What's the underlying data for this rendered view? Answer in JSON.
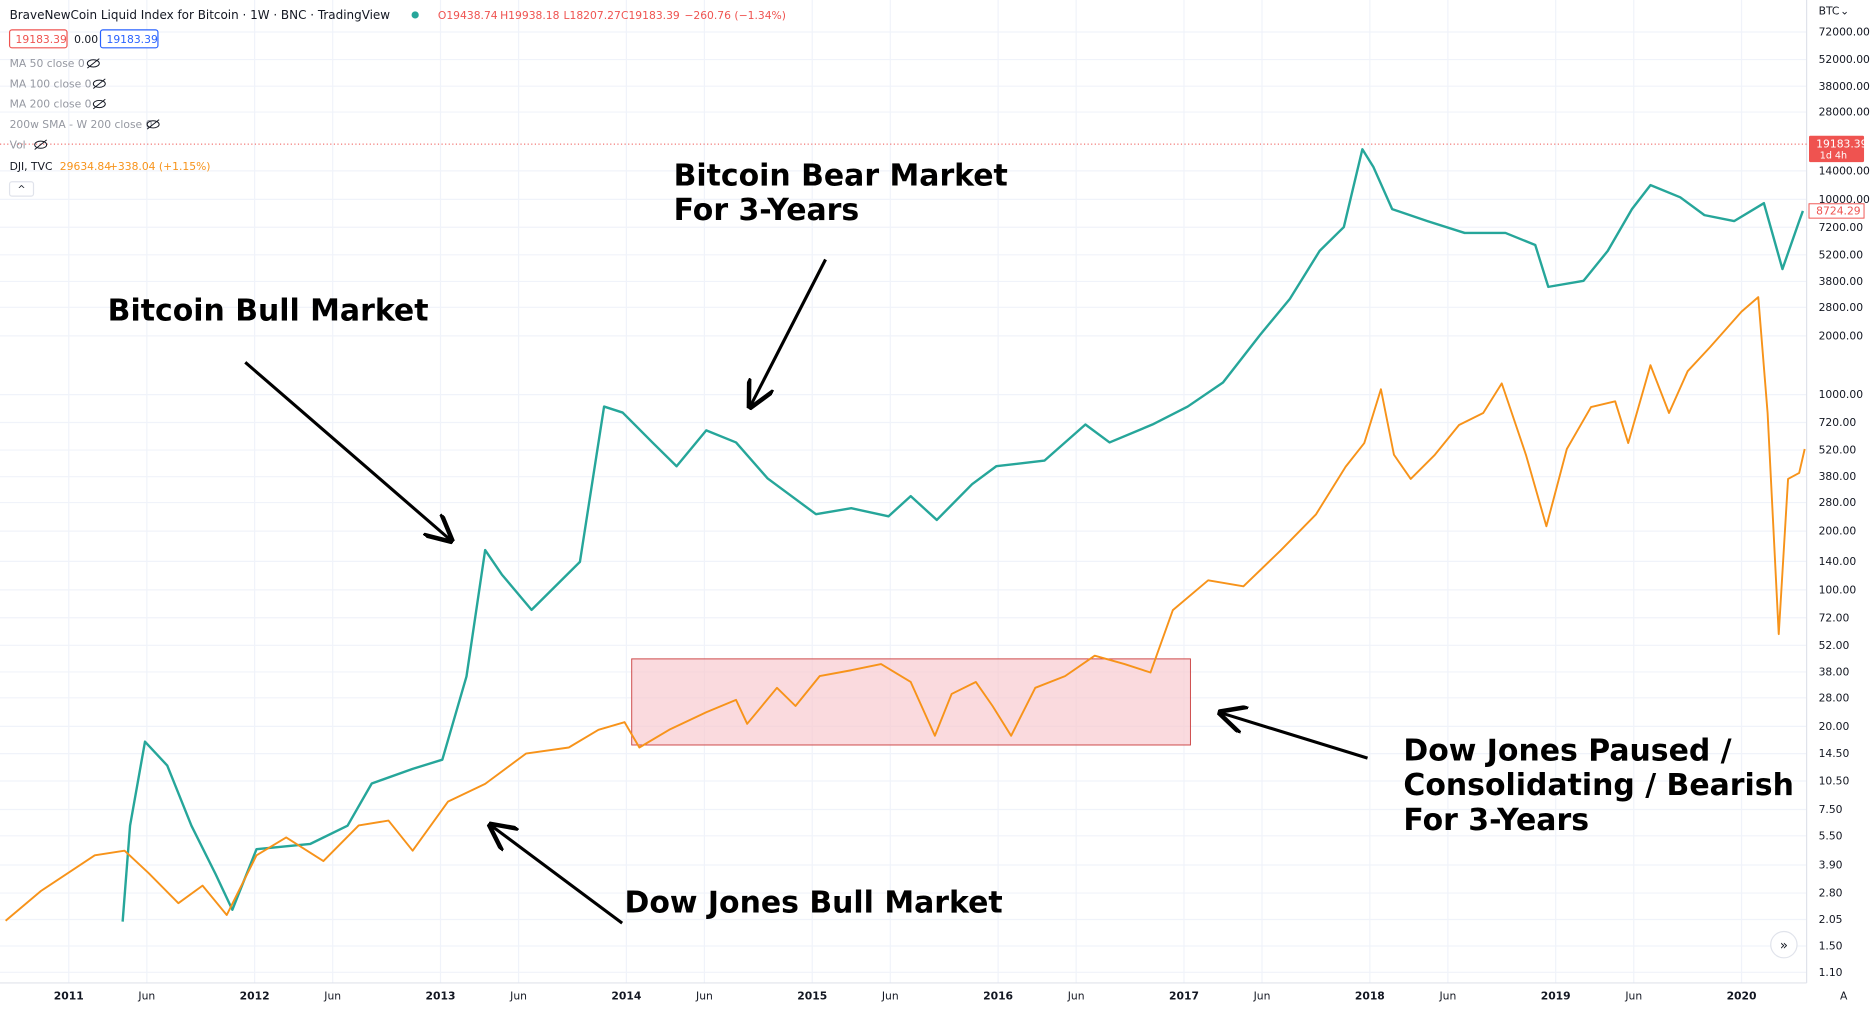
{
  "chart_data": {
    "type": "line",
    "header": {
      "title": "BraveNewCoin Liquid Index for Bitcoin · 1W · BNC · TradingView",
      "ohlc": [
        "O19438.74",
        "H19938.18",
        "L18207.27",
        "C19183.39",
        "−260.76 (−1.34%)"
      ],
      "boxes": [
        "19183.39",
        "0.00",
        "19183.39"
      ],
      "indicators": [
        "MA 50 close 0",
        "MA 100 close 0",
        "MA 200 close 0",
        "200w SMA - W 200 close 0",
        "Vol"
      ],
      "compare": [
        "DJI, TVC",
        "29634.84",
        "+338.04 (+1.15%)"
      ]
    },
    "currency": "BTC",
    "countdown": "1d 4h",
    "last_price": 19183.39,
    "annotations": [
      [
        "Bitcoin Bull Market"
      ],
      [
        "Bitcoin Bear Market",
        "For 3-Years"
      ],
      [
        "Dow Jones Bull Market"
      ],
      [
        "Dow Jones Paused /",
        "Consolidating / Bearish",
        "For 3-Years"
      ]
    ],
    "log_scale": true,
    "grid": true,
    "xlim": [
      2010.63,
      2020.35
    ],
    "xticks": [
      2011,
      {
        "value": 2011.42,
        "label": "Jun"
      },
      2012,
      {
        "value": 2012.42,
        "label": "Jun"
      },
      2013,
      {
        "value": 2013.42,
        "label": "Jun"
      },
      2014,
      {
        "value": 2014.42,
        "label": "Jun"
      },
      2015,
      {
        "value": 2015.42,
        "label": "Jun"
      },
      2016,
      {
        "value": 2016.42,
        "label": "Jun"
      },
      2017,
      {
        "value": 2017.42,
        "label": "Jun"
      },
      2018,
      {
        "value": 2018.42,
        "label": "Jun"
      },
      2019,
      {
        "value": 2019.42,
        "label": "Jun"
      },
      2020
    ],
    "ylim": [
      0.97,
      105000
    ],
    "yticks": [
      {
        "value": 1.1,
        "label": "1.10"
      },
      {
        "value": 1.5,
        "label": "1.50"
      },
      {
        "value": 2.05,
        "label": "2.05"
      },
      {
        "value": 2.8,
        "label": "2.80"
      },
      {
        "value": 3.9,
        "label": "3.90"
      },
      {
        "value": 5.5,
        "label": "5.50"
      },
      {
        "value": 7.5,
        "label": "7.50"
      },
      {
        "value": 10.5,
        "label": "10.50"
      },
      {
        "value": 14.5,
        "label": "14.50"
      },
      {
        "value": 20,
        "label": "20.00"
      },
      {
        "value": 28,
        "label": "28.00"
      },
      {
        "value": 38,
        "label": "38.00"
      },
      {
        "value": 52,
        "label": "52.00"
      },
      {
        "value": 72,
        "label": "72.00"
      },
      {
        "value": 100,
        "label": "100.00"
      },
      {
        "value": 140,
        "label": "140.00"
      },
      {
        "value": 200,
        "label": "200.00"
      },
      {
        "value": 280,
        "label": "280.00"
      },
      {
        "value": 380,
        "label": "380.00"
      },
      {
        "value": 520,
        "label": "520.00"
      },
      {
        "value": 720,
        "label": "720.00"
      },
      {
        "value": 1000,
        "label": "1000.00"
      },
      {
        "value": 2000,
        "label": "2000.00"
      },
      {
        "value": 2800,
        "label": "2800.00"
      },
      {
        "value": 3800,
        "label": "3800.00"
      },
      {
        "value": 5200,
        "label": "5200.00"
      },
      {
        "value": 7200,
        "label": "7200.00"
      },
      {
        "value": 10000,
        "label": "10000.00"
      },
      {
        "value": 14000,
        "label": "14000.00"
      },
      {
        "value": 28000,
        "label": "28000.00"
      },
      {
        "value": 38000,
        "label": "38000.00"
      },
      {
        "value": 52000,
        "label": "52000.00"
      },
      {
        "value": 72000,
        "label": "72000.00"
      }
    ],
    "y2lim": [
      9970,
      47200
    ],
    "series": [
      {
        "name": "BraveNewCoin Liquid Index for Bitcoin",
        "color": "#26a69a",
        "x": [
          2011.29,
          2011.33,
          2011.41,
          2011.53,
          2011.66,
          2011.79,
          2011.88,
          2012.01,
          2012.3,
          2012.5,
          2012.63,
          2012.85,
          2013.01,
          2013.14,
          2013.24,
          2013.33,
          2013.49,
          2013.75,
          2013.88,
          2013.98,
          2014.14,
          2014.27,
          2014.43,
          2014.59,
          2014.76,
          2015.02,
          2015.21,
          2015.41,
          2015.53,
          2015.67,
          2015.86,
          2015.99,
          2016.25,
          2016.47,
          2016.6,
          2016.83,
          2017.02,
          2017.21,
          2017.41,
          2017.57,
          2017.73,
          2017.86,
          2017.96,
          2018.02,
          2018.12,
          2018.31,
          2018.51,
          2018.73,
          2018.89,
          2018.96,
          2019.15,
          2019.28,
          2019.41,
          2019.51,
          2019.67,
          2019.8,
          2019.96,
          2020.12,
          2020.22,
          2020.31,
          2020.33
        ],
        "values": [
          2.0,
          6.2,
          16.7,
          12.6,
          6.2,
          3.5,
          2.3,
          4.7,
          5.0,
          6.2,
          10.2,
          12.1,
          13.5,
          36,
          160,
          120,
          79,
          139,
          869,
          810,
          569,
          430,
          656,
          569,
          372,
          244,
          262,
          238,
          302,
          228,
          348,
          430,
          460,
          703,
          569,
          703,
          869,
          1153,
          2028,
          3097,
          5445,
          7211,
          18070,
          14620,
          8915,
          7740,
          6730,
          6730,
          5834,
          3565,
          3828,
          5445,
          8915,
          11830,
          10250,
          8310,
          7740,
          9570,
          4400,
          7740,
          8724.29
        ]
      },
      {
        "name": "DJI, TVC",
        "color": "#f7931a",
        "axis": "y2",
        "x": [
          2010.66,
          2010.85,
          2011.14,
          2011.3,
          2011.43,
          2011.59,
          2011.72,
          2011.85,
          2012.01,
          2012.17,
          2012.37,
          2012.56,
          2012.72,
          2012.85,
          2013.04,
          2013.24,
          2013.46,
          2013.69,
          2013.85,
          2013.99,
          2014.07,
          2014.23,
          2014.43,
          2014.59,
          2014.65,
          2014.81,
          2014.91,
          2015.04,
          2015.21,
          2015.37,
          2015.53,
          2015.66,
          2015.75,
          2015.88,
          2015.97,
          2016.07,
          2016.2,
          2016.36,
          2016.52,
          2016.68,
          2016.82,
          2016.94,
          2017.13,
          2017.32,
          2017.52,
          2017.71,
          2017.87,
          2017.97,
          2018.06,
          2018.13,
          2018.22,
          2018.35,
          2018.48,
          2018.61,
          2018.71,
          2018.84,
          2018.95,
          2019.06,
          2019.19,
          2019.32,
          2019.39,
          2019.51,
          2019.61,
          2019.71,
          2019.83,
          2020.0,
          2020.09,
          2020.14,
          2020.2,
          2020.25,
          2020.31,
          2020.34
        ],
        "values": [
          11000,
          11530,
          12200,
          12290,
          11860,
          11310,
          11630,
          11100,
          12200,
          12550,
          12090,
          12790,
          12890,
          12290,
          13280,
          13660,
          14330,
          14470,
          14880,
          15060,
          14470,
          14880,
          15300,
          15600,
          15020,
          15900,
          15450,
          16200,
          16350,
          16510,
          16050,
          14740,
          15750,
          16050,
          15450,
          14740,
          15900,
          16200,
          16730,
          16510,
          16290,
          17980,
          18850,
          18670,
          19760,
          20920,
          22560,
          23420,
          25500,
          22990,
          22130,
          22990,
          24100,
          24560,
          25740,
          22990,
          20530,
          23200,
          24790,
          25020,
          23420,
          26490,
          24560,
          26240,
          27250,
          28830,
          29500,
          24560,
          17310,
          22130,
          22340,
          23200
        ]
      }
    ]
  }
}
